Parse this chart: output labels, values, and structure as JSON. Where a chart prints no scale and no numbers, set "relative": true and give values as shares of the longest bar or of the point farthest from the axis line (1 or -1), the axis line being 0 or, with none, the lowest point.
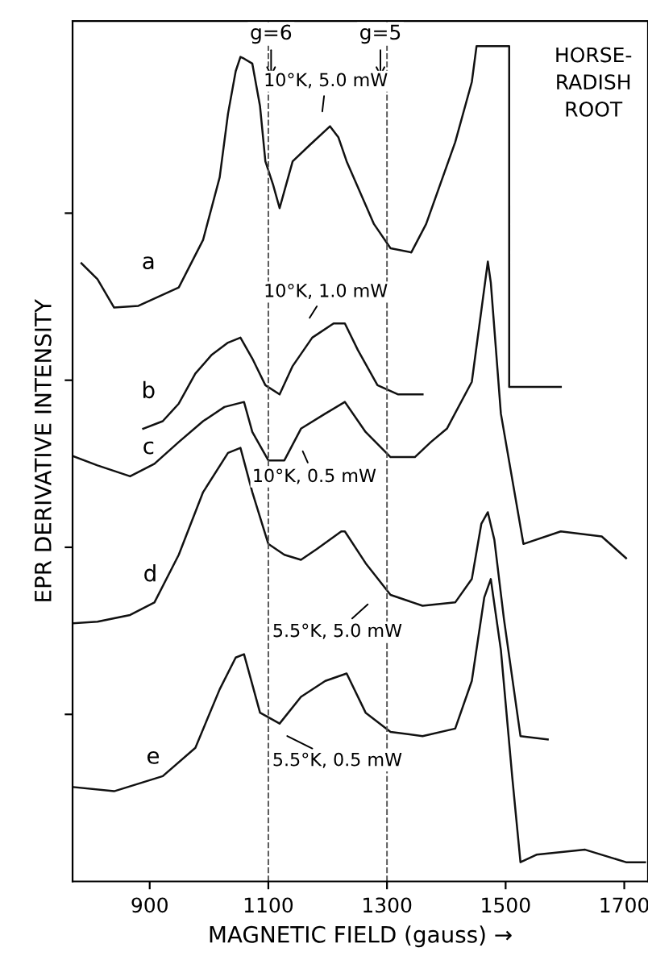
{
  "chart_data": {
    "type": "line",
    "relative": true,
    "xlabel": "MAGNETIC FIELD (gauss) →",
    "ylabel": "EPR DERIVATIVE INTENSITY",
    "xlim": [
      770,
      1740
    ],
    "xticks": [
      900,
      1100,
      1300,
      1500,
      1700
    ],
    "tick_labels": "x",
    "grid": false,
    "legend": false,
    "marker": "none",
    "line_style": "solid",
    "ref_lines": [
      {
        "axis": "x",
        "value": 1100,
        "line_style": "dashed",
        "color": "#555555"
      },
      {
        "axis": "x",
        "value": 1300,
        "line_style": "dashed",
        "color": "#555555"
      }
    ],
    "annotations": [
      "HORSE-\nRADISH\nROOT",
      "g=6",
      "g=5",
      "10°K, 5.0 mW",
      "10°K, 1.0 mW",
      "10°K, 0.5 mW",
      "5.5°K, 5.0 mW",
      "5.5°K, 0.5 mW"
    ],
    "series": [
      {
        "name": "a",
        "color": "#111111",
        "x": [
          785,
          812,
          840,
          881,
          949,
          990,
          1018,
          1032,
          1045,
          1053,
          1059,
          1073,
          1086,
          1095,
          1108,
          1119,
          1130,
          1141,
          1169,
          1204,
          1218,
          1232,
          1278,
          1306,
          1341,
          1366,
          1415,
          1443,
          1451,
          1506,
          1506,
          1593
        ],
        "values": [
          0.74,
          0.721,
          0.687,
          0.689,
          0.711,
          0.768,
          0.843,
          0.919,
          0.97,
          0.987,
          0.985,
          0.979,
          0.928,
          0.862,
          0.834,
          0.806,
          0.834,
          0.862,
          0.881,
          0.904,
          0.891,
          0.862,
          0.787,
          0.758,
          0.753,
          0.787,
          0.885,
          0.957,
          1.0,
          1.0,
          0.592,
          0.592
        ]
      },
      {
        "name": "b",
        "color": "#111111",
        "x": [
          889,
          922,
          949,
          977,
          1004,
          1032,
          1053,
          1073,
          1095,
          1119,
          1141,
          1174,
          1210,
          1229,
          1251,
          1284,
          1319,
          1360
        ],
        "values": [
          0.542,
          0.551,
          0.572,
          0.608,
          0.63,
          0.645,
          0.651,
          0.626,
          0.594,
          0.583,
          0.617,
          0.651,
          0.668,
          0.668,
          0.636,
          0.594,
          0.583,
          0.583
        ]
      },
      {
        "name": "c",
        "color": "#111111",
        "x": [
          771,
          812,
          867,
          908,
          949,
          990,
          1026,
          1059,
          1073,
          1100,
          1127,
          1155,
          1196,
          1229,
          1264,
          1306,
          1347,
          1374,
          1401,
          1443,
          1470,
          1475,
          1492,
          1530,
          1593,
          1662,
          1703
        ],
        "values": [
          0.509,
          0.498,
          0.485,
          0.5,
          0.526,
          0.551,
          0.568,
          0.574,
          0.538,
          0.504,
          0.504,
          0.542,
          0.56,
          0.574,
          0.538,
          0.508,
          0.508,
          0.526,
          0.542,
          0.598,
          0.742,
          0.717,
          0.56,
          0.404,
          0.419,
          0.413,
          0.387
        ]
      },
      {
        "name": "d",
        "color": "#111111",
        "x": [
          771,
          812,
          867,
          908,
          949,
          990,
          1032,
          1053,
          1073,
          1100,
          1127,
          1155,
          1182,
          1223,
          1229,
          1264,
          1306,
          1360,
          1415,
          1443,
          1459,
          1470,
          1481,
          1497,
          1525,
          1571
        ],
        "values": [
          0.309,
          0.311,
          0.319,
          0.334,
          0.391,
          0.466,
          0.513,
          0.519,
          0.466,
          0.404,
          0.391,
          0.385,
          0.398,
          0.419,
          0.419,
          0.381,
          0.343,
          0.33,
          0.334,
          0.362,
          0.428,
          0.442,
          0.409,
          0.315,
          0.174,
          0.17
        ]
      },
      {
        "name": "e",
        "color": "#111111",
        "x": [
          771,
          840,
          922,
          977,
          1018,
          1045,
          1059,
          1086,
          1119,
          1155,
          1196,
          1232,
          1264,
          1306,
          1360,
          1415,
          1443,
          1464,
          1475,
          1492,
          1511,
          1525,
          1552,
          1634,
          1703,
          1735
        ],
        "values": [
          0.113,
          0.108,
          0.126,
          0.16,
          0.23,
          0.268,
          0.272,
          0.202,
          0.189,
          0.221,
          0.24,
          0.249,
          0.202,
          0.179,
          0.174,
          0.183,
          0.24,
          0.34,
          0.362,
          0.277,
          0.126,
          0.023,
          0.032,
          0.038,
          0.023,
          0.023
        ]
      }
    ]
  }
}
